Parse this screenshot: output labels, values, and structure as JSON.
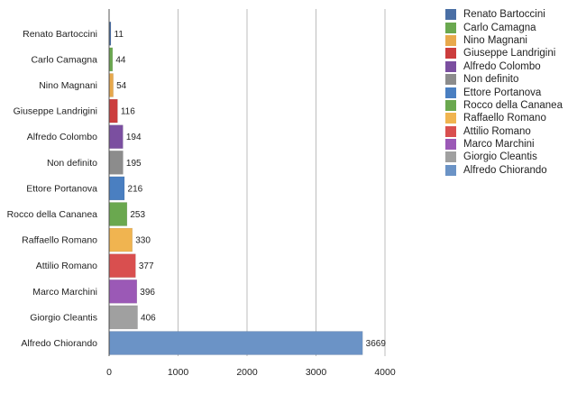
{
  "chart_data": {
    "type": "bar",
    "orientation": "horizontal",
    "title": "",
    "xlabel": "",
    "ylabel": "",
    "xlim": [
      0,
      4000
    ],
    "xticks": [
      0,
      1000,
      2000,
      3000,
      4000
    ],
    "grid": true,
    "legend_position": "right",
    "categories": [
      "Renato Bartoccini",
      "Carlo Camagna",
      "Nino Magnani",
      "Giuseppe Landrigini",
      "Alfredo Colombo",
      "Non definito",
      "Ettore Portanova",
      "Rocco della Cananea",
      "Raffaello Romano",
      "Attilio Romano",
      "Marco Marchini",
      "Giorgio Cleantis",
      "Alfredo Chiorando"
    ],
    "values": [
      11,
      44,
      54,
      116,
      194,
      195,
      216,
      253,
      330,
      377,
      396,
      406,
      3669
    ],
    "colors": [
      "#4a6fa5",
      "#6aa84f",
      "#e8a94c",
      "#cc3d3d",
      "#7b4fa0",
      "#8c8c8c",
      "#4a7fc1",
      "#6aa84f",
      "#f0b450",
      "#d94f4f",
      "#9b59b6",
      "#a0a0a0",
      "#6b93c6"
    ]
  }
}
